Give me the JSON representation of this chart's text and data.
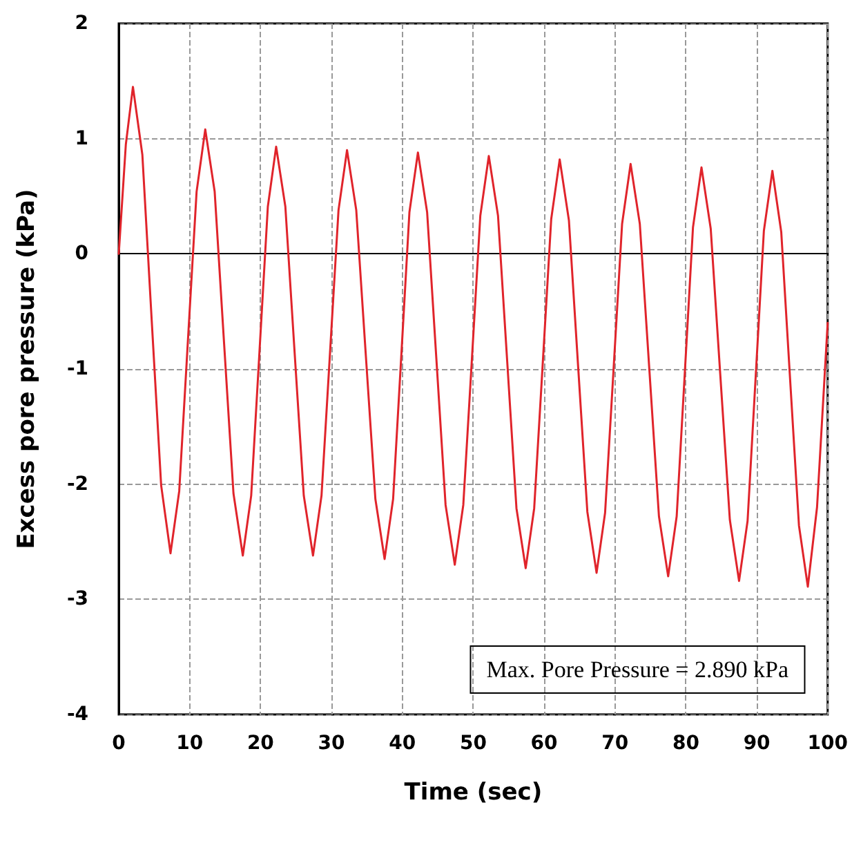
{
  "chart_data": {
    "type": "line",
    "xlabel": "Time (sec)",
    "ylabel": "Excess pore pressure (kPa)",
    "xlim": [
      0,
      100
    ],
    "xticks": [
      0,
      10,
      20,
      30,
      40,
      50,
      60,
      70,
      80,
      90,
      100
    ],
    "ylim": [
      -4,
      2
    ],
    "yticks": [
      -4,
      -3,
      -2,
      -1,
      0,
      1,
      2
    ],
    "grid": true,
    "marker": "none",
    "line_style": "solid",
    "annotations": [
      "Max. Pore Pressure = 2.890 kPa"
    ],
    "series": [
      {
        "color": "#e0242b",
        "x": [
          0,
          1,
          2,
          3.33,
          4.65,
          5.98,
          7.3,
          8.53,
          9.75,
          10.98,
          12.2,
          13.53,
          14.85,
          16.18,
          17.5,
          18.68,
          19.85,
          21.03,
          22.2,
          23.5,
          24.8,
          26.1,
          27.4,
          28.6,
          29.8,
          31,
          32.2,
          33.5,
          34.85,
          36.2,
          37.5,
          38.7,
          39.85,
          41,
          42.2,
          43.5,
          44.8,
          46.1,
          47.4,
          48.6,
          49.8,
          51,
          52.2,
          53.5,
          54.8,
          56.1,
          57.4,
          58.6,
          59.8,
          61,
          62.2,
          63.5,
          64.8,
          66.1,
          67.4,
          68.6,
          69.8,
          71,
          72.2,
          73.5,
          74.85,
          76.2,
          77.5,
          78.7,
          79.85,
          81,
          82.2,
          83.5,
          84.85,
          86.2,
          87.5,
          88.7,
          89.85,
          91,
          92.2,
          93.45,
          94.7,
          95.95,
          97.2,
          98.5,
          100
        ],
        "values": [
          0,
          0.95,
          1.45,
          0.86,
          -0.58,
          -2.01,
          -2.6,
          -2.06,
          -0.76,
          0.54,
          1.08,
          0.54,
          -0.77,
          -2.08,
          -2.62,
          -2.1,
          -0.85,
          0.41,
          0.93,
          0.41,
          -0.85,
          -2.1,
          -2.62,
          -2.1,
          -0.86,
          0.38,
          0.9,
          0.38,
          -0.88,
          -2.13,
          -2.65,
          -2.13,
          -0.89,
          0.36,
          0.88,
          0.36,
          -0.91,
          -2.18,
          -2.7,
          -2.18,
          -0.93,
          0.33,
          0.85,
          0.33,
          -0.94,
          -2.21,
          -2.73,
          -2.21,
          -0.96,
          0.3,
          0.82,
          0.29,
          -0.98,
          -2.24,
          -2.77,
          -2.25,
          -1,
          0.26,
          0.78,
          0.26,
          -1.01,
          -2.28,
          -2.8,
          -2.28,
          -1.03,
          0.23,
          0.75,
          0.22,
          -1.05,
          -2.31,
          -2.84,
          -2.32,
          -1.06,
          0.2,
          0.72,
          0.19,
          -1.09,
          -2.36,
          -2.89,
          -2.2,
          -0.6
        ]
      }
    ]
  }
}
